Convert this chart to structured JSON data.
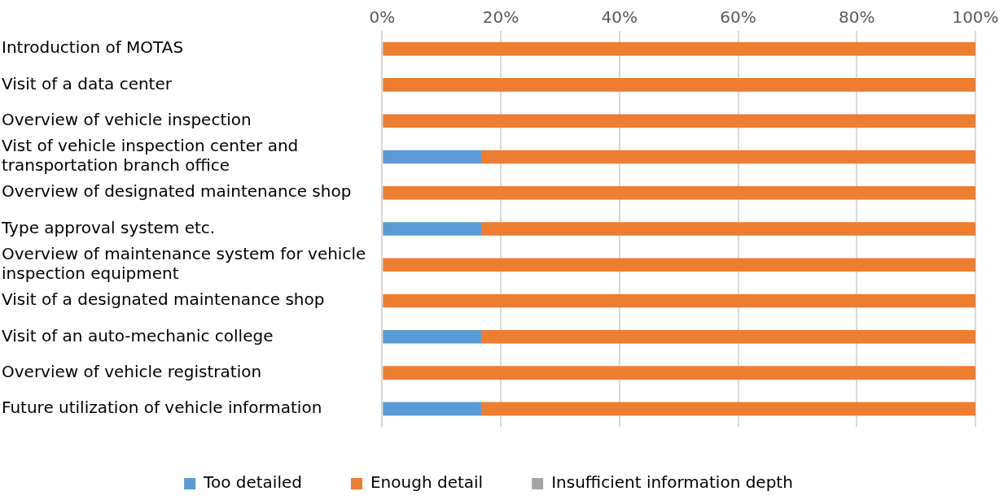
{
  "chart_data": {
    "type": "bar",
    "orientation": "horizontal",
    "stacked": true,
    "grid": "x",
    "legend": "bottom",
    "categories": [
      "Introduction of MOTAS",
      "Visit of a data center",
      "Overview of vehicle inspection",
      "Vist of vehicle inspection center and transportation branch office",
      "Overview of designated maintenance shop",
      "Type approval system etc.",
      "Overview of maintenance system for vehicle inspection equipment",
      "Visit of a designated maintenance shop",
      "Visit of an auto-mechanic college",
      "Overview of vehicle registration",
      "Future utilization of vehicle information"
    ],
    "series": [
      {
        "name": "Too detailed",
        "color": "#5b9bd5",
        "values": [
          0,
          0,
          0,
          16.7,
          0,
          16.7,
          0,
          0,
          16.7,
          0,
          16.7
        ]
      },
      {
        "name": "Enough detail",
        "color": "#ed7d31",
        "values": [
          100,
          100,
          100,
          83.3,
          100,
          83.3,
          100,
          100,
          83.3,
          100,
          83.3
        ]
      },
      {
        "name": "Insufficient information depth",
        "color": "#a5a5a5",
        "values": [
          0,
          0,
          0,
          0,
          0,
          0,
          0,
          0,
          0,
          0,
          0
        ]
      }
    ],
    "xlim": [
      0,
      100
    ],
    "xticks": [
      {
        "value": 0,
        "label": "0%"
      },
      {
        "value": 20,
        "label": "20%"
      },
      {
        "value": 40,
        "label": "40%"
      },
      {
        "value": 60,
        "label": "60%"
      },
      {
        "value": 80,
        "label": "80%"
      },
      {
        "value": 100,
        "label": "100%"
      }
    ]
  }
}
